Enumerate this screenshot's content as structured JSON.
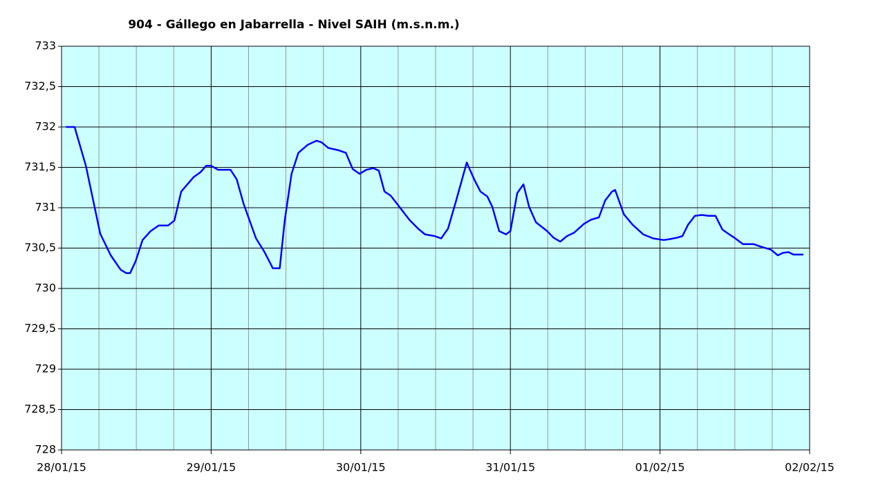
{
  "chart_data": {
    "type": "line",
    "title": "904 - Gállego en Jabarrella - Nivel SAIH (m.s.n.m.)",
    "x": [
      0.7,
      2.1,
      3.9,
      6.2,
      7.9,
      9.5,
      10.4,
      11,
      11.9,
      13,
      14.3,
      15.6,
      17.1,
      18.1,
      19.2,
      21.2,
      22.3,
      23.2,
      24,
      25.1,
      27.1,
      28.1,
      29.2,
      31.2,
      32.5,
      33.9,
      35,
      35.8,
      36.9,
      38,
      39.5,
      40.9,
      41.7,
      42.8,
      44.5,
      45.6,
      46.7,
      47.8,
      48.9,
      50,
      50.9,
      51.8,
      52.8,
      54.5,
      55.8,
      57.2,
      58.3,
      59.8,
      60.9,
      62,
      63.3,
      65,
      66.2,
      67.2,
      68.3,
      69.1,
      70.2,
      71.3,
      72,
      73.1,
      74.1,
      75,
      76.1,
      77.9,
      78.9,
      80,
      81.1,
      82.2,
      83.8,
      84.9,
      86.2,
      87.2,
      88.3,
      88.8,
      90.2,
      91.6,
      93.3,
      94.9,
      96.6,
      97.5,
      98.8,
      99.6,
      100.5,
      101.6,
      102.7,
      103.8,
      104.9,
      106,
      107.1,
      107.9,
      109.3,
      111,
      112.1,
      113.8,
      114.9,
      115.7,
      116.6,
      117.4,
      119
    ],
    "series": [
      {
        "color": "#0000ff",
        "values": [
          732.0,
          732.0,
          731.52,
          730.68,
          730.41,
          730.23,
          730.19,
          730.19,
          730.34,
          730.6,
          730.71,
          730.78,
          730.78,
          730.84,
          731.2,
          731.38,
          731.44,
          731.52,
          731.52,
          731.47,
          731.47,
          731.35,
          731.05,
          730.62,
          730.46,
          730.25,
          730.25,
          730.84,
          731.42,
          731.68,
          731.78,
          731.83,
          731.81,
          731.74,
          731.71,
          731.68,
          731.48,
          731.42,
          731.47,
          731.49,
          731.46,
          731.2,
          731.15,
          730.98,
          730.85,
          730.74,
          730.67,
          730.65,
          730.62,
          730.74,
          731.09,
          731.56,
          731.35,
          731.2,
          731.14,
          731.01,
          730.71,
          730.67,
          730.71,
          731.18,
          731.29,
          731.01,
          730.82,
          730.71,
          730.63,
          730.58,
          730.65,
          730.69,
          730.8,
          730.85,
          730.88,
          731.09,
          731.2,
          731.22,
          730.92,
          730.79,
          730.67,
          730.62,
          730.6,
          730.61,
          730.63,
          730.65,
          730.79,
          730.9,
          730.91,
          730.9,
          730.9,
          730.73,
          730.67,
          730.63,
          730.55,
          730.55,
          730.52,
          730.48,
          730.41,
          730.44,
          730.45,
          730.42,
          730.42
        ]
      }
    ],
    "xlim": [
      0,
      120
    ],
    "xticks": [
      {
        "value": 0,
        "label": "28/01/15"
      },
      {
        "value": 24,
        "label": "29/01/15"
      },
      {
        "value": 48,
        "label": "30/01/15"
      },
      {
        "value": 72,
        "label": "31/01/15"
      },
      {
        "value": 96,
        "label": "01/02/15"
      },
      {
        "value": 120,
        "label": "02/02/15"
      }
    ],
    "ylim": [
      728,
      733
    ],
    "yticks": [
      728,
      {
        "value": 728.5,
        "label": "728,5"
      },
      729,
      {
        "value": 729.5,
        "label": "729,5"
      },
      730,
      {
        "value": 730.5,
        "label": "730,5"
      },
      731,
      {
        "value": 731.5,
        "label": "731,5"
      },
      732,
      {
        "value": 732.5,
        "label": "732,5"
      },
      733
    ],
    "grid": true
  }
}
